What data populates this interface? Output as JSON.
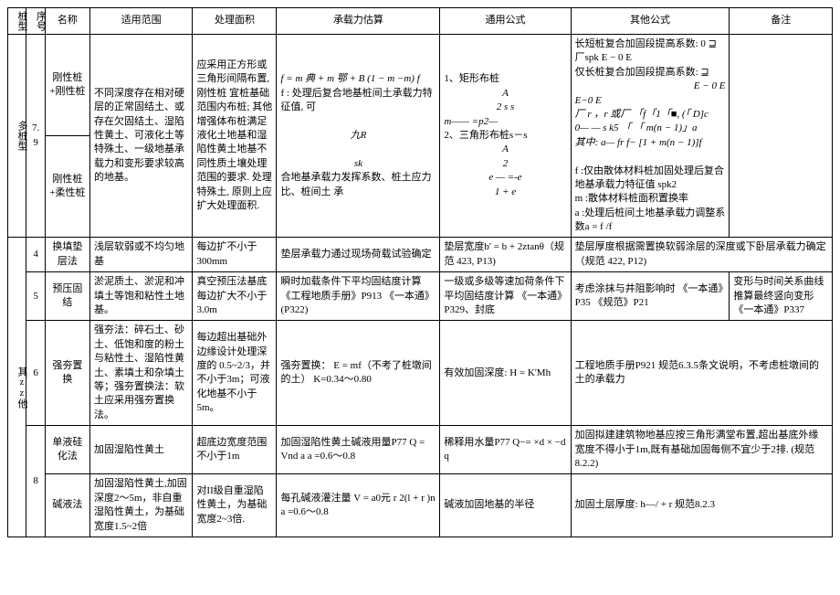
{
  "headers": {
    "type": "桩型",
    "seq": "序号",
    "name": "名称",
    "scope": "适用范围",
    "area": "处理面积",
    "capacity": "承载力估算",
    "general": "通用公式",
    "other": "其他公式",
    "remark": "备注"
  },
  "row1": {
    "type": "多桩型",
    "seq": "7.9",
    "name1": "刚性桩+刚性桩",
    "name2": "刚性桩+柔性桩",
    "scope": "不同深度存在相对硬层的正常固结土、或存在欠固结土、湿陷性黄土、可液化土等特殊土、一级地基承载力和变形要求较高的地基。",
    "area1": "应采用正方形或三角形间隔布置,刚性桩 宜桩基础范围内布桩; 其他增强体布桩满足液化土地基和湿陷性黄土地基不同性质土壤处理范围的要求. 处理 特殊土, 原则上应扩大处理面积.",
    "capacity1": "f = m 典 + m 鄂 + B (1 − m    −m) f",
    "capacity2": "f : 处理后复合地基桩间土承载力特征值, 可",
    "capacity3": "九R",
    "capacity4": "sk",
    "capacity5": "合地基承载力发挥系数、桩土应力比、桩间土 承",
    "general1": "1、矩形布桩",
    "general1a": "A",
    "general1b": "2 s s",
    "general1c": "m—— =p2—",
    "general2": "2、三角形布桩s－s",
    "general2a": "A",
    "general2b": "2",
    "general2c": "e — =-e",
    "general2d": "1 + e",
    "other1": "长短桩复合加固段提高系数: 0    ⊒  厂spk E − 0 E",
    "other2": "仅长桩复合加固段提高系数:  ⊒",
    "other2b": "E − 0 E",
    "other3": "E−0 E",
    "other4": "厂    r ，r 或厂    「f「1「■, (「 D]c",
    "other5": "0— — s k5  「     「          m(n − 1)」a",
    "other6": "其中: a— fr     f− [1 + m(n − 1)]f",
    "other7": "f :仅由散体材料桩加固处理后复合地基承载力特征值   spk2",
    "other8": "m :散体材料桩面积置换率",
    "other9": "a :处理后桩间土地基承载力调整系数a = f /f"
  },
  "row2": {
    "type": "其zz他",
    "seq": "4",
    "name": "换填垫层法",
    "scope": "浅层软弱或不均匀地基",
    "area": "每边扩不小于300mm",
    "capacity": "垫层承载力通过现场荷载试验确定",
    "general": "垫层宽度b' = b + 2ztanθ（规范 423, P13)",
    "remark": "垫层厚度根据需置换软弱涂层的深度或下卧层承载力确定（规范 422, P12)"
  },
  "row3": {
    "seq": "5",
    "name": "预压固结",
    "scope": "淤泥质土、淤泥和冲填土等饱和粘性土地基。",
    "area": "真空预压法基底每边扩大不小于3.0m",
    "capacity": "瞬时加载条件下平均固结度计算《工程地质手册》P913      《一本通》 (P322)",
    "general": "一级或多级等速加荷条件下平均固结度计算    《一本通》P329、封底",
    "other": "考虑涂抹与井阻影响时    《一本通》P35   《规范》P21",
    "remark": "变形与时间关系曲线推算最终竖向变形《一本通》P337"
  },
  "row4": {
    "seq": "6",
    "name": "强夯置换",
    "scope": "强夯法：碎石土、砂土、低饱和度的粉土与粘性土、湿陷性黄土、素填土和杂填土等；强夯置换法：软土应采用强夯置换法。",
    "area": "每边超出基础外边缘设计处理深度的 0.5~2/3，并不小于3m；可液化地基不小于5m。",
    "capacity": "强夯置换：    E = mf（不考了桩墩间的土）    K=0.34～0.80",
    "general": "有效加固深度:    H = K'Mh",
    "other": "工程地质手册P921    规范6.3.5条文说明，不考虑桩墩间的土的承载力"
  },
  "row5": {
    "seq": "8",
    "name1": "单液硅化法",
    "name2": "碱液法",
    "scope1": "加固湿陷性黄土",
    "scope2": "加固湿陷性黄土,加固深度2～5m，非自重湿陷性黄土，为基础宽度1.5~2倍",
    "area1": "超底边宽度范围不小于1m",
    "area2": "对II级自重湿陷性黄土，为基础宽度2~3倍.",
    "capacity1": "加固湿陷性黄土碱液用量P77    Q = Vnd a    a =0.6～0.8",
    "capacity2": "每孔碱液灌注量    V = a0元  r 2(l + r )n    a =0.6～0.8",
    "general1": "稀释用水量P77    Q−= ×d   ×     −d     q",
    "general2": "碱液加固地基的半径",
    "other1": "加固拟建建筑物地基应按三角形满堂布置,超出基底外缘宽度不得小于1m,既有基础加固每侧不宜少于2排.  (规范8.2.2)",
    "other2": "加固土层厚度: h—/ + r 规范8.2.3"
  }
}
